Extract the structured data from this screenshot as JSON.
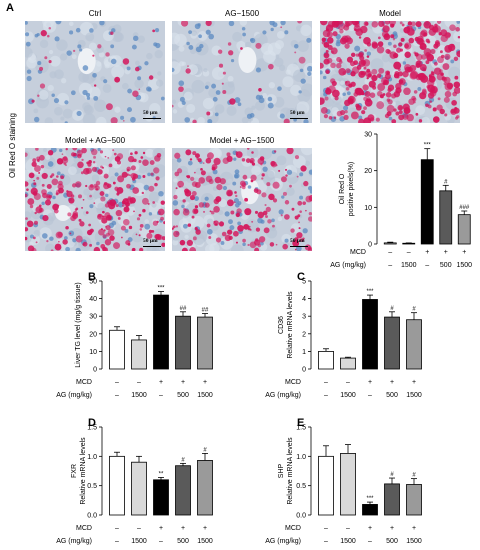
{
  "panel_a": {
    "letter": "A",
    "side_label": "Oil Red O staining",
    "images": [
      {
        "title": "Ctrl",
        "scale": "50 μm",
        "stain": "low"
      },
      {
        "title": "AG−1500",
        "scale": "50 μm",
        "stain": "low"
      },
      {
        "title": "Model",
        "scale": "",
        "stain": "high"
      },
      {
        "title": "Model + AG−500",
        "scale": "50 μm",
        "stain": "mid"
      },
      {
        "title": "Model + AG−1500",
        "scale": "50 μm",
        "stain": "midlow"
      }
    ]
  },
  "colors": {
    "ctrl": "#ffffff",
    "ag1500": "#d9d9d9",
    "model": "#000000",
    "ag500": "#5a5a5a",
    "ag1500_model": "#9a9a9a",
    "tissue": "#c9d3e0",
    "lipid": "#d4145a",
    "nuclei": "#5b8ac2"
  },
  "conditions": {
    "mcd_label": "MCD",
    "ag_label": "AG (mg/kg)",
    "mcd": [
      "–",
      "–",
      "+",
      "+",
      "+"
    ],
    "ag": [
      "–",
      "1500",
      "–",
      "500",
      "1500"
    ]
  },
  "chart_data": [
    {
      "id": "oil",
      "type": "bar",
      "ylabel": "Oil Red O\npositive pixels(%)",
      "ylim": [
        0,
        30
      ],
      "yticks": [
        0,
        10,
        20,
        30
      ],
      "values": [
        0.3,
        0.2,
        23,
        14.5,
        8
      ],
      "errors": [
        0.2,
        0.1,
        3.0,
        1.5,
        1.0
      ],
      "annotations": [
        "",
        "",
        "***",
        "#",
        "###"
      ]
    },
    {
      "id": "tg",
      "letter": "B",
      "type": "bar",
      "ylabel": "Liver TG level (mg/g tissue)",
      "ylim": [
        0,
        50
      ],
      "yticks": [
        0,
        10,
        20,
        30,
        40,
        50
      ],
      "values": [
        22,
        16.5,
        42,
        30,
        29.5
      ],
      "errors": [
        2,
        2.5,
        2,
        2.5,
        2
      ],
      "annotations": [
        "",
        "",
        "***",
        "##",
        "##"
      ]
    },
    {
      "id": "cd36",
      "letter": "C",
      "type": "bar",
      "ylabel": "CD36\nRelative mRNA levels",
      "ylim": [
        0,
        5
      ],
      "yticks": [
        0,
        1,
        2,
        3,
        4,
        5
      ],
      "values": [
        1.0,
        0.62,
        3.95,
        2.95,
        2.8
      ],
      "errors": [
        0.15,
        0.05,
        0.25,
        0.3,
        0.4
      ],
      "annotations": [
        "",
        "",
        "***",
        "#",
        "#"
      ]
    },
    {
      "id": "fxr",
      "letter": "D",
      "type": "bar",
      "ylabel": "FXR\nRelative mRNA levels",
      "ylim": [
        0,
        1.5
      ],
      "yticks": [
        0.0,
        0.5,
        1.0,
        1.5
      ],
      "ytick_labels": [
        "0.0",
        "0.5",
        "1.0",
        "1.5"
      ],
      "values": [
        1.0,
        0.9,
        0.6,
        0.84,
        0.93
      ],
      "errors": [
        0.07,
        0.1,
        0.04,
        0.04,
        0.12
      ],
      "annotations": [
        "",
        "",
        "**",
        "#",
        "#"
      ]
    },
    {
      "id": "shp",
      "letter": "E",
      "type": "bar",
      "ylabel": "SHP\nRelative mRNA levels",
      "ylim": [
        0,
        1.5
      ],
      "yticks": [
        0.0,
        0.5,
        1.0,
        1.5
      ],
      "ytick_labels": [
        "0.0",
        "0.5",
        "1.0",
        "1.5"
      ],
      "values": [
        1.0,
        1.05,
        0.18,
        0.53,
        0.52
      ],
      "errors": [
        0.18,
        0.15,
        0.04,
        0.1,
        0.1
      ],
      "annotations": [
        "",
        "",
        "***",
        "#",
        "#"
      ]
    }
  ]
}
